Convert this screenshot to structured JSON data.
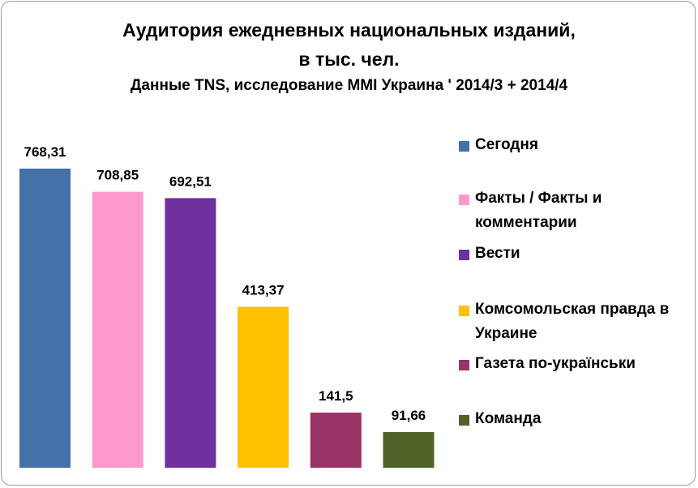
{
  "title": {
    "line1": "Аудитория ежедневных национальных изданий,",
    "line2": "в тыс. чел.",
    "subtitle": "Данные TNS, исследование MMI Украина ' 2014/3 + 2014/4"
  },
  "chart_data": {
    "type": "bar",
    "categories": [
      "Сегодня",
      "Факты / Факты и комментарии",
      "Вести",
      "Комсомольская правда в Украине",
      "Газета по-українськи",
      "Команда"
    ],
    "values": [
      768.31,
      708.85,
      692.51,
      413.37,
      141.5,
      91.66
    ],
    "value_labels": [
      "768,31",
      "708,85",
      "692,51",
      "413,37",
      "141,5",
      "91,66"
    ],
    "colors": [
      "#4472A8",
      "#FF99CC",
      "#7030A0",
      "#FFC000",
      "#993366",
      "#4F6228"
    ],
    "legend_position": "right",
    "grid": false
  },
  "legend": {
    "items": [
      {
        "lines": [
          "Сегодня"
        ],
        "color": "#4472A8"
      },
      {
        "lines": [
          "Факты / Факты и",
          "комментарии"
        ],
        "color": "#FF99CC"
      },
      {
        "lines": [
          "Вести"
        ],
        "color": "#7030A0"
      },
      {
        "lines": [
          "Комсомольская правда в",
          "Украине"
        ],
        "color": "#FFC000"
      },
      {
        "lines": [
          "Газета по-українськи"
        ],
        "color": "#993366"
      },
      {
        "lines": [
          "Команда"
        ],
        "color": "#4F6228"
      }
    ]
  }
}
